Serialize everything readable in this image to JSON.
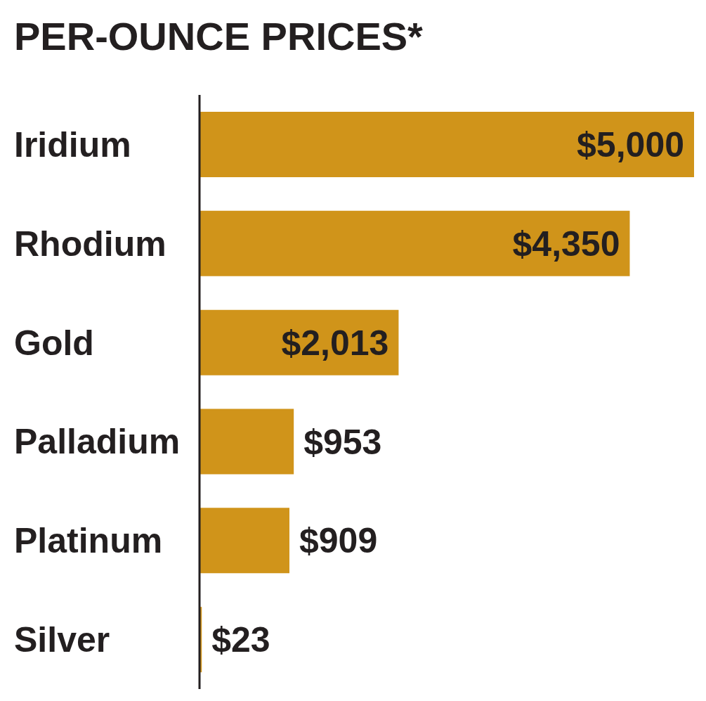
{
  "chart_data": {
    "type": "bar",
    "title": "PER-OUNCE PRICES*",
    "orientation": "horizontal",
    "categories": [
      "Iridium",
      "Rhodium",
      "Gold",
      "Palladium",
      "Platinum",
      "Silver"
    ],
    "values": [
      5000,
      4350,
      2013,
      953,
      909,
      23
    ],
    "value_labels": [
      "$5,000",
      "$4,350",
      "$2,013",
      "$953",
      "$909",
      "$23"
    ],
    "color": "#D0941A",
    "xlim": [
      0,
      5000
    ],
    "tick_labels": false,
    "grid": false,
    "data_labels": true
  }
}
